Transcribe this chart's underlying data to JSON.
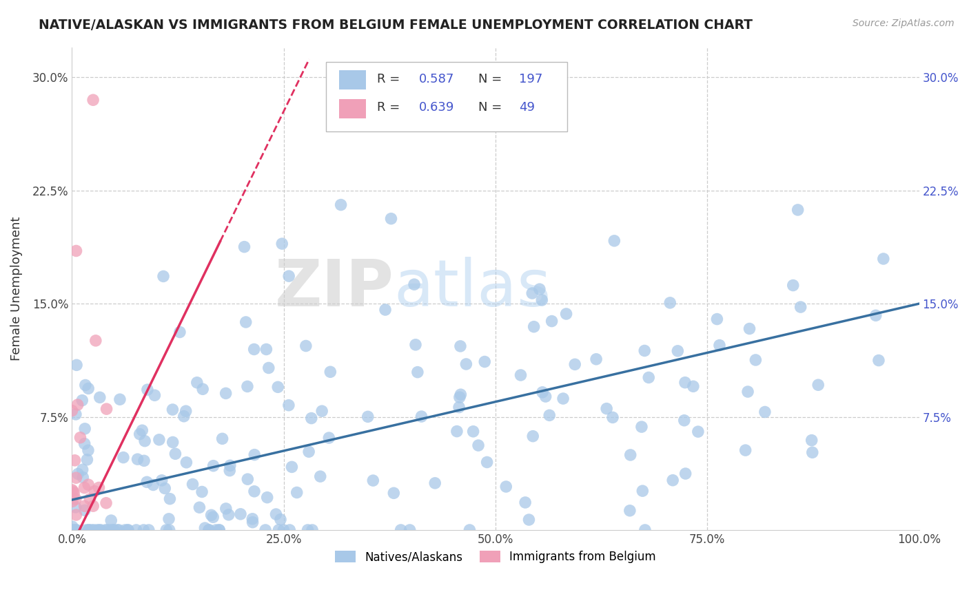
{
  "title": "NATIVE/ALASKAN VS IMMIGRANTS FROM BELGIUM FEMALE UNEMPLOYMENT CORRELATION CHART",
  "source_text": "Source: ZipAtlas.com",
  "ylabel": "Female Unemployment",
  "xlim": [
    0,
    1.0
  ],
  "ylim": [
    0.0,
    0.32
  ],
  "color_blue": "#A8C8E8",
  "color_pink": "#F0A0B8",
  "line_blue": "#3870A0",
  "line_pink": "#E03060",
  "color_r_value": "#4455CC",
  "watermark_zip": "ZIP",
  "watermark_atlas": "atlas",
  "blue_intercept": 0.02,
  "blue_slope": 0.13,
  "pink_intercept": -0.01,
  "pink_slope": 1.15
}
